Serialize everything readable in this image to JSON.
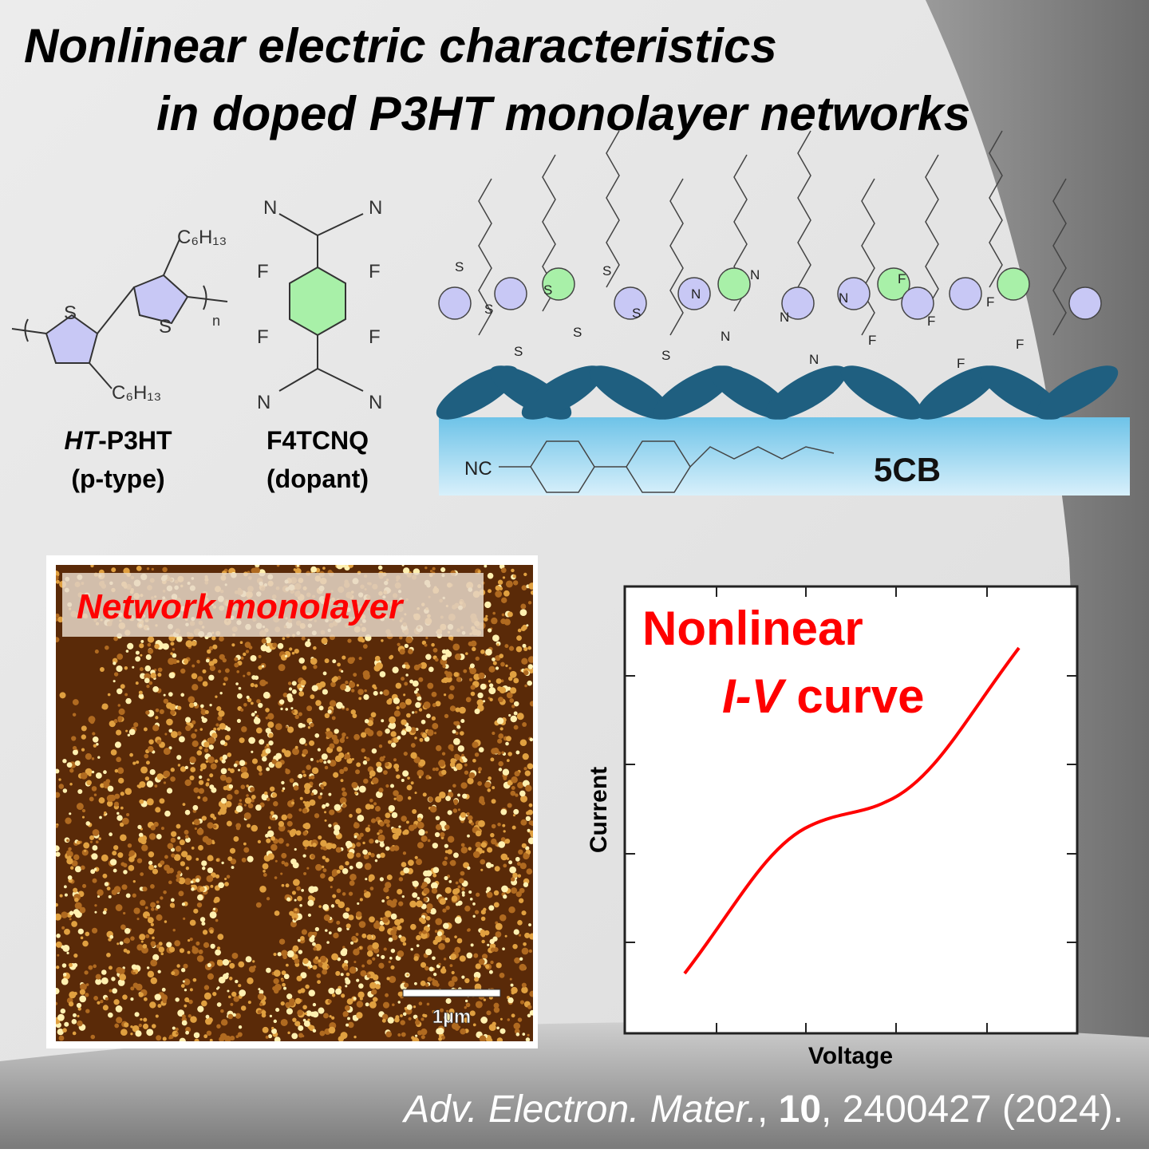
{
  "title": {
    "line1": "Nonlinear electric characteristics",
    "line2": "in doped P3HT monolayer networks"
  },
  "p3ht": {
    "atoms": [
      "S",
      "S",
      "n"
    ],
    "substituent_top": "C₆H₁₃",
    "substituent_bottom": "C₆H₁₃",
    "name_italic": "HT",
    "name_rest": "-P3HT",
    "role": "(p-type)"
  },
  "f4tcnq": {
    "atoms": [
      "N",
      "N",
      "F",
      "F",
      "F",
      "F",
      "N",
      "N"
    ],
    "name": "F4TCNQ",
    "role": "(dopant)"
  },
  "scheme": {
    "substrate_group": "NC",
    "substrate": "5CB",
    "atoms": [
      "S",
      "S",
      "S",
      "S",
      "S",
      "S",
      "S",
      "S",
      "N",
      "N",
      "N",
      "N",
      "N",
      "N",
      "F",
      "F",
      "F",
      "F",
      "F",
      "F"
    ]
  },
  "afm": {
    "label": "Network monolayer",
    "scale_bar": "1µm"
  },
  "iv": {
    "heading1": "Nonlinear",
    "heading2_italic": "I-V",
    "heading2_rest": " curve",
    "ylabel": "Current",
    "xlabel": "Voltage"
  },
  "citation": {
    "journal": "Adv. Electron. Mater.",
    "sep": ", ",
    "volume": "10",
    "rest": ", 2400427 (2024)."
  }
}
